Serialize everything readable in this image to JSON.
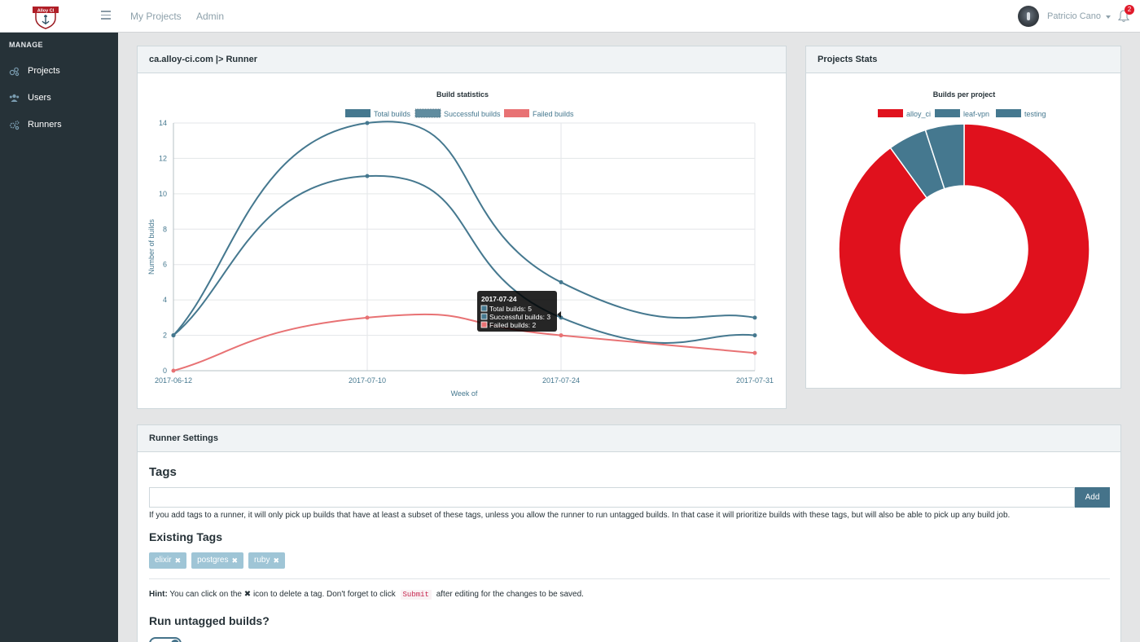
{
  "navbar": {
    "brand_text": "Alloy CI",
    "links": [
      "My Projects",
      "Admin"
    ],
    "user_name": "Patricio Cano",
    "notification_count": "2"
  },
  "sidebar": {
    "title": "MANAGE",
    "items": [
      {
        "label": "Projects",
        "icon": "projects-icon"
      },
      {
        "label": "Users",
        "icon": "users-icon"
      },
      {
        "label": "Runners",
        "icon": "runners-icon"
      }
    ]
  },
  "runner_card": {
    "title": "ca.alloy-ci.com |> Runner"
  },
  "stats_card": {
    "title": "Projects Stats"
  },
  "chart_data": [
    {
      "type": "line",
      "title": "Build statistics",
      "xlabel": "Week of",
      "ylabel": "Number of builds",
      "categories": [
        "2017-06-12",
        "2017-07-10",
        "2017-07-24",
        "2017-07-31"
      ],
      "series": [
        {
          "name": "Total builds",
          "values": [
            2,
            14,
            5,
            3
          ],
          "color": "#45788f"
        },
        {
          "name": "Successful builds",
          "values": [
            2,
            11,
            3,
            2
          ],
          "color": "#45788f"
        },
        {
          "name": "Failed builds",
          "values": [
            0,
            3,
            2,
            1
          ],
          "color": "#e87274"
        }
      ],
      "ylim": [
        0,
        14
      ],
      "yticks": [
        0,
        2,
        4,
        6,
        8,
        10,
        12,
        14
      ],
      "grid": true,
      "legend": "top",
      "tooltip": {
        "title": "2017-07-24",
        "lines": [
          "Total builds: 5",
          "Successful builds: 3",
          "Failed builds: 2"
        ]
      }
    },
    {
      "type": "pie",
      "title": "Builds per project",
      "labels": [
        "alloy_ci",
        "leaf-vpn",
        "testing"
      ],
      "values": [
        90,
        5,
        5
      ],
      "colors": [
        "#e0111d",
        "#45788f",
        "#45788f"
      ],
      "legend": "top"
    }
  ],
  "settings": {
    "title": "Runner Settings",
    "tags_heading": "Tags",
    "tag_input_value": "",
    "add_label": "Add",
    "help_text": "If you add tags to a runner, it will only pick up builds that have at least a subset of these tags, unless you allow the runner to run untagged builds. In that case it will prioritize builds with these tags, but will also be able to pick up any build job.",
    "existing_heading": "Existing Tags",
    "tags": [
      "elixir",
      "postgres",
      "ruby"
    ],
    "hint_label": "Hint:",
    "hint_part1": "You can click on the",
    "hint_part2": "icon to delete a tag. Don't forget to click",
    "hint_code": "Submit",
    "hint_part3": "after editing for the changes to be saved.",
    "untagged_heading": "Run untagged builds?",
    "untagged_enabled": true
  }
}
